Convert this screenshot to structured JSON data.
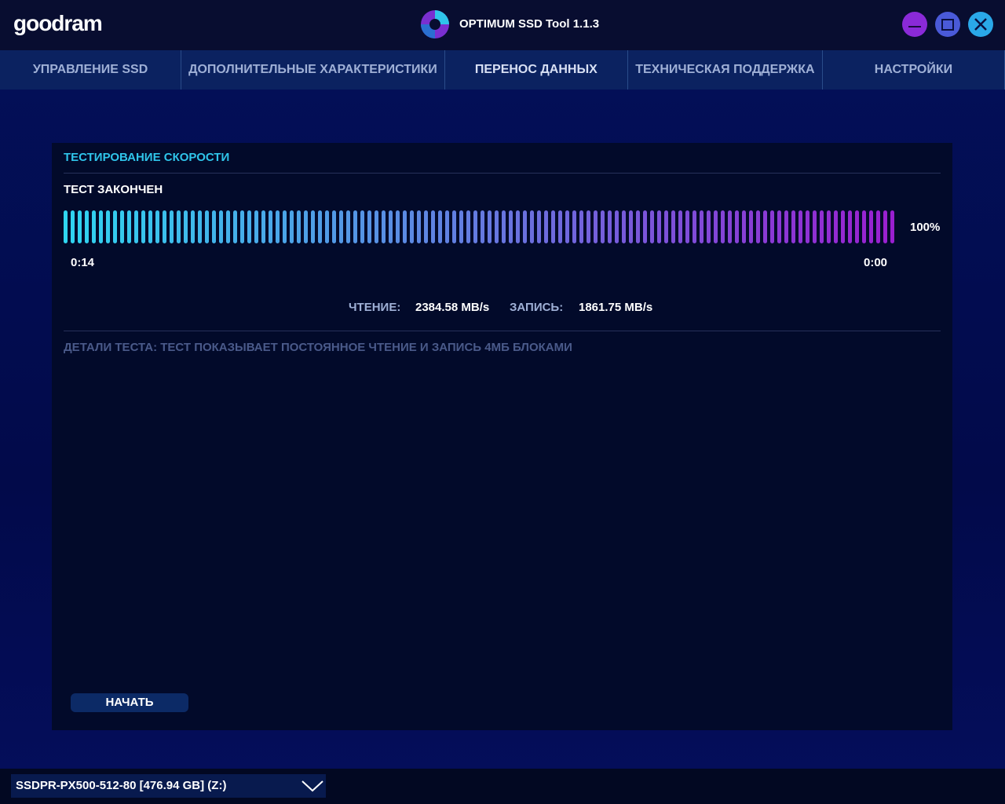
{
  "header": {
    "logo": "goodram",
    "title": "OPTIMUM SSD Tool 1.1.3"
  },
  "tabs": [
    "УПРАВЛЕНИЕ SSD",
    "ДОПОЛНИТЕЛЬНЫЕ ХАРАКТЕРИСТИКИ",
    "ПЕРЕНОС ДАННЫХ",
    "ТЕХНИЧЕСКАЯ ПОДДЕРЖКА",
    "НАСТРОЙКИ"
  ],
  "panel": {
    "title": "ТЕСТИРОВАНИЕ СКОРОСТИ",
    "status": "ТЕСТ ЗАКОНЧЕН",
    "progress": "100%",
    "time_start": "0:14",
    "time_end": "0:00",
    "read_label": "ЧТЕНИЕ:",
    "read_value": "2384.58 MB/s",
    "write_label": "ЗАПИСЬ:",
    "write_value": "1861.75 MB/s",
    "details": "ДЕТАЛИ ТЕСТА: ТЕСТ ПОКАЗЫВАЕТ ПОСТОЯННОЕ ЧТЕНИЕ И ЗАПИСЬ 4МБ БЛОКАМИ",
    "button": "НАЧАТЬ"
  },
  "drive": "SSDPR-PX500-512-80 [476.94 GB] (Z:)"
}
